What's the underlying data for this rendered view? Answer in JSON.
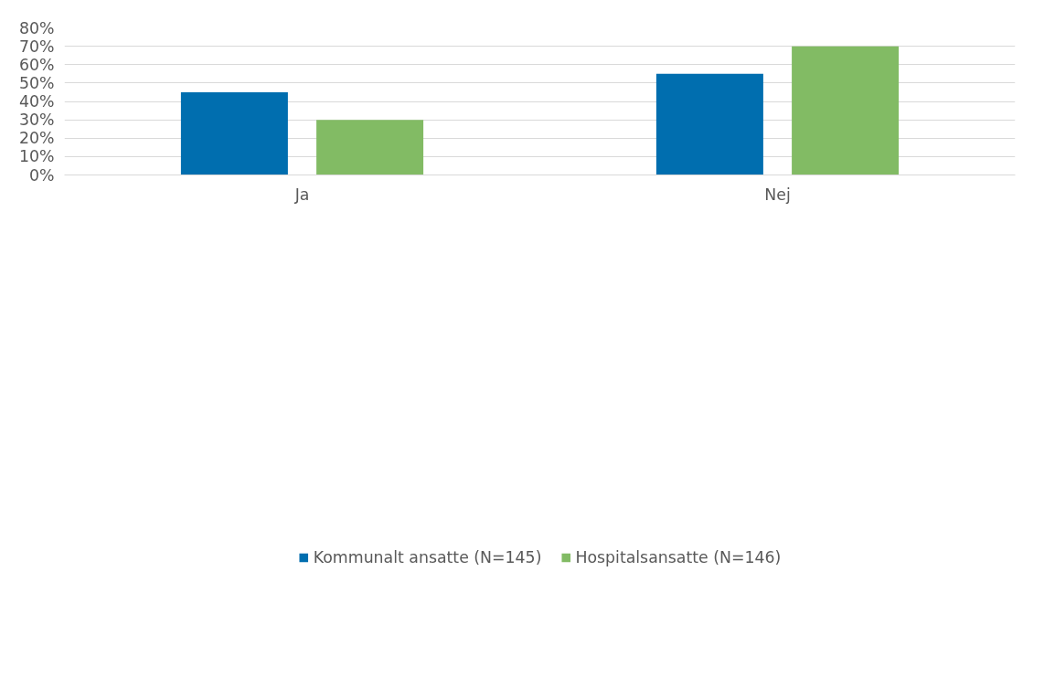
{
  "chart_data": {
    "type": "bar",
    "categories": [
      "Ja",
      "Nej"
    ],
    "series": [
      {
        "name": "Kommunalt ansatte (N=145)",
        "color": "#006eaf",
        "values": [
          45,
          55
        ]
      },
      {
        "name": "Hospitalsansatte (N=146)",
        "color": "#82bb64",
        "values": [
          30,
          70
        ]
      }
    ],
    "ylim": [
      0,
      80
    ],
    "yticks": [
      {
        "value": 0,
        "label": "0%"
      },
      {
        "value": 10,
        "label": "10%"
      },
      {
        "value": 20,
        "label": "20%"
      },
      {
        "value": 30,
        "label": "30%"
      },
      {
        "value": 40,
        "label": "40%"
      },
      {
        "value": 50,
        "label": "50%"
      },
      {
        "value": 60,
        "label": "60%"
      },
      {
        "value": 70,
        "label": "70%"
      },
      {
        "value": 80,
        "label": "80%"
      }
    ],
    "grid": "y",
    "legend": "bottom"
  }
}
